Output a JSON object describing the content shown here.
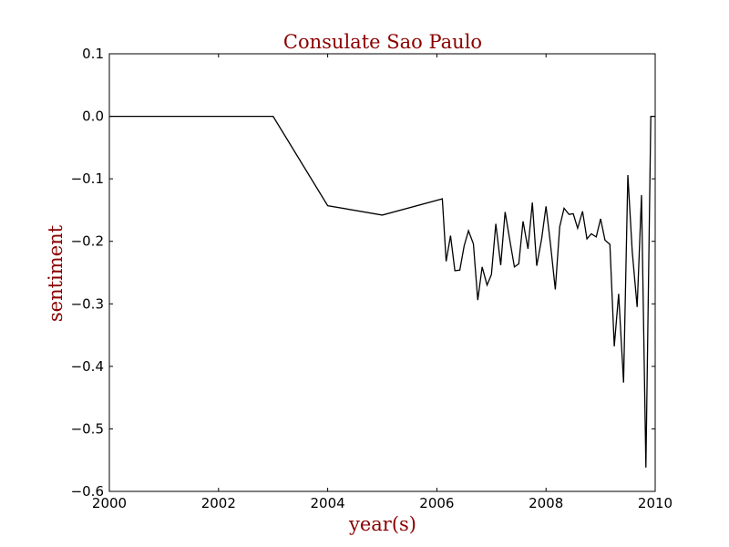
{
  "chart_data": {
    "type": "line",
    "title": "Consulate Sao Paulo",
    "xlabel": "year(s)",
    "ylabel": "sentiment",
    "xlim": [
      2000,
      2010
    ],
    "ylim": [
      -0.6,
      0.1
    ],
    "x_ticks": [
      "2000",
      "2002",
      "2004",
      "2006",
      "2008",
      "2010"
    ],
    "y_ticks": [
      "0.1",
      "0.0",
      "−0.1",
      "−0.2",
      "−0.3",
      "−0.4",
      "−0.5",
      "−0.6"
    ],
    "grid": false,
    "legend": "none",
    "colors": {
      "title": "#8b0000",
      "labels": "#8b0000",
      "line": "#000000"
    },
    "series": [
      {
        "x": [
          2000.0,
          2003.0,
          2004.0,
          2005.0,
          2006.1,
          2006.17,
          2006.25,
          2006.33,
          2006.42,
          2006.5,
          2006.58,
          2006.67,
          2006.75,
          2006.83,
          2006.92,
          2007.0,
          2007.08,
          2007.17,
          2007.25,
          2007.33,
          2007.42,
          2007.5,
          2007.58,
          2007.67,
          2007.75,
          2007.83,
          2007.92,
          2008.0,
          2008.08,
          2008.17,
          2008.25,
          2008.33,
          2008.42,
          2008.5,
          2008.58,
          2008.67,
          2008.75,
          2008.83,
          2008.92,
          2009.0,
          2009.08,
          2009.17,
          2009.25,
          2009.33,
          2009.42,
          2009.5,
          2009.58,
          2009.67,
          2009.75,
          2009.83,
          2009.92,
          2010.0
        ],
        "y": [
          0.0,
          0.0,
          -0.143,
          -0.158,
          -0.132,
          -0.232,
          -0.191,
          -0.247,
          -0.246,
          -0.207,
          -0.183,
          -0.204,
          -0.294,
          -0.241,
          -0.27,
          -0.253,
          -0.172,
          -0.238,
          -0.153,
          -0.195,
          -0.241,
          -0.236,
          -0.168,
          -0.212,
          -0.138,
          -0.239,
          -0.196,
          -0.144,
          -0.203,
          -0.277,
          -0.177,
          -0.147,
          -0.157,
          -0.156,
          -0.179,
          -0.152,
          -0.196,
          -0.188,
          -0.193,
          -0.164,
          -0.198,
          -0.205,
          -0.368,
          -0.284,
          -0.426,
          -0.094,
          -0.216,
          -0.305,
          -0.126,
          -0.562,
          0.0,
          0.0
        ]
      }
    ]
  }
}
